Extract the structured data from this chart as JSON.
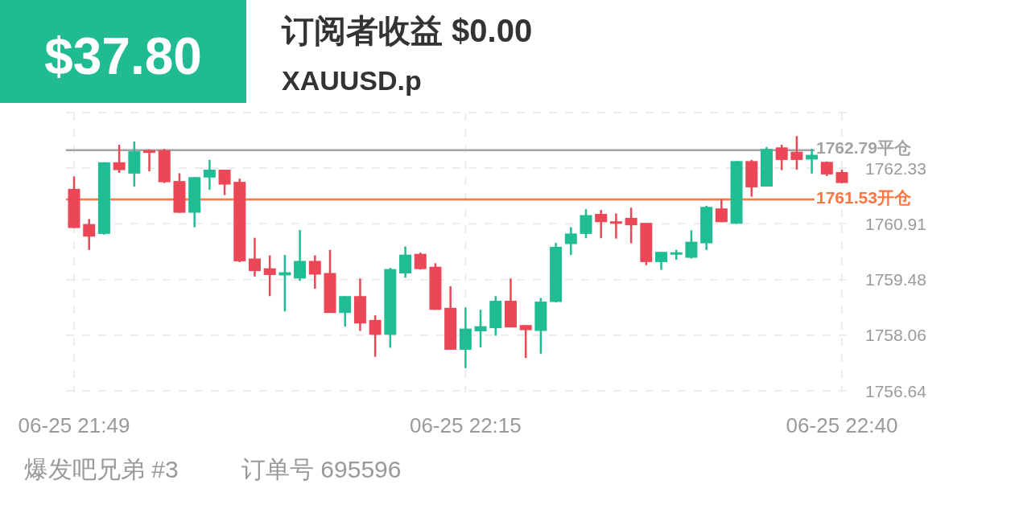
{
  "chart_data": {
    "type": "candlestick",
    "title": "订阅者收益 $0.00",
    "subtitle": "XAUUSD.p",
    "annotations": [
      "$37.80",
      "爆发吧兄弟 #3",
      "订单号 695596"
    ],
    "categories": [
      "06-25 21:49",
      null,
      null,
      null,
      null,
      null,
      null,
      null,
      null,
      null,
      null,
      null,
      null,
      null,
      null,
      null,
      null,
      null,
      null,
      null,
      null,
      null,
      null,
      null,
      null,
      null,
      "06-25 22:15",
      null,
      null,
      null,
      null,
      null,
      null,
      null,
      null,
      null,
      null,
      null,
      null,
      null,
      null,
      null,
      null,
      null,
      null,
      null,
      null,
      null,
      null,
      null,
      null,
      "06-25 22:40"
    ],
    "ohlc": [
      [
        1761.8,
        1762.12,
        1760.8,
        1760.8
      ],
      [
        1760.9,
        1761.03,
        1760.24,
        1760.58
      ],
      [
        1760.65,
        1762.48,
        1760.63,
        1762.48
      ],
      [
        1762.48,
        1762.93,
        1762.21,
        1762.28
      ],
      [
        1762.19,
        1763.01,
        1761.86,
        1762.76
      ],
      [
        1762.79,
        1762.81,
        1762.25,
        1762.72
      ],
      [
        1762.79,
        1762.82,
        1761.95,
        1761.97
      ],
      [
        1762.0,
        1762.2,
        1761.19,
        1761.19
      ],
      [
        1761.19,
        1762.1,
        1760.82,
        1762.1
      ],
      [
        1762.09,
        1762.54,
        1761.78,
        1762.29
      ],
      [
        1762.29,
        1762.29,
        1761.64,
        1761.91
      ],
      [
        1761.98,
        1762.06,
        1759.93,
        1759.95
      ],
      [
        1760.02,
        1760.55,
        1759.56,
        1759.7
      ],
      [
        1759.77,
        1760.1,
        1759.06,
        1759.6
      ],
      [
        1759.59,
        1760.11,
        1758.67,
        1759.67
      ],
      [
        1759.51,
        1760.75,
        1759.45,
        1759.96
      ],
      [
        1759.96,
        1760.1,
        1759.25,
        1759.61
      ],
      [
        1759.65,
        1760.24,
        1758.63,
        1758.63
      ],
      [
        1758.63,
        1759.06,
        1758.28,
        1759.06
      ],
      [
        1759.06,
        1759.51,
        1758.17,
        1758.36
      ],
      [
        1758.45,
        1758.57,
        1757.51,
        1758.07
      ],
      [
        1758.07,
        1759.78,
        1757.74,
        1759.75
      ],
      [
        1759.64,
        1760.33,
        1759.53,
        1760.12
      ],
      [
        1760.14,
        1760.17,
        1759.74,
        1759.75
      ],
      [
        1759.81,
        1759.9,
        1758.71,
        1758.71
      ],
      [
        1758.76,
        1759.31,
        1757.69,
        1757.69
      ],
      [
        1757.69,
        1758.77,
        1757.22,
        1758.23
      ],
      [
        1758.16,
        1758.71,
        1757.75,
        1758.29
      ],
      [
        1758.24,
        1759.06,
        1758.05,
        1758.94
      ],
      [
        1758.94,
        1759.51,
        1758.26,
        1758.26
      ],
      [
        1758.32,
        1758.32,
        1757.48,
        1758.19
      ],
      [
        1758.17,
        1759.01,
        1757.59,
        1758.92
      ],
      [
        1758.91,
        1760.42,
        1758.9,
        1760.32
      ],
      [
        1760.39,
        1760.82,
        1760.11,
        1760.66
      ],
      [
        1760.65,
        1761.28,
        1760.54,
        1761.13
      ],
      [
        1761.16,
        1761.26,
        1760.54,
        1760.95
      ],
      [
        1760.97,
        1761.17,
        1760.53,
        1760.91
      ],
      [
        1761.06,
        1761.32,
        1760.41,
        1760.87
      ],
      [
        1760.93,
        1760.93,
        1759.85,
        1759.93
      ],
      [
        1759.93,
        1760.19,
        1759.73,
        1760.19
      ],
      [
        1760.12,
        1760.24,
        1759.99,
        1760.18
      ],
      [
        1760.04,
        1760.74,
        1760.02,
        1760.45
      ],
      [
        1760.41,
        1761.37,
        1760.24,
        1761.34
      ],
      [
        1761.3,
        1761.54,
        1760.95,
        1760.95
      ],
      [
        1760.91,
        1762.51,
        1760.9,
        1762.51
      ],
      [
        1762.51,
        1762.54,
        1761.6,
        1761.84
      ],
      [
        1761.86,
        1762.87,
        1761.86,
        1762.82
      ],
      [
        1762.86,
        1762.93,
        1762.28,
        1762.54
      ],
      [
        1762.75,
        1763.15,
        1762.29,
        1762.54
      ],
      [
        1762.55,
        1762.82,
        1762.19,
        1762.67
      ],
      [
        1762.49,
        1762.5,
        1762.13,
        1762.17
      ],
      [
        1762.23,
        1762.29,
        1761.95,
        1761.95
      ]
    ],
    "ylim": [
      1756.64,
      1763.75
    ],
    "yticks": [
      1756.64,
      1758.06,
      1759.48,
      1760.91,
      1762.33,
      {
        "value": 1763.75,
        "label": null
      }
    ],
    "grid": true,
    "ref_lines": [
      {
        "axis": "y",
        "value": 1762.79,
        "label": "1762.79平仓",
        "color": "#a3a3a3"
      },
      {
        "axis": "y",
        "value": 1761.53,
        "label": "1761.53开仓",
        "color": "#ff7440"
      }
    ]
  }
}
